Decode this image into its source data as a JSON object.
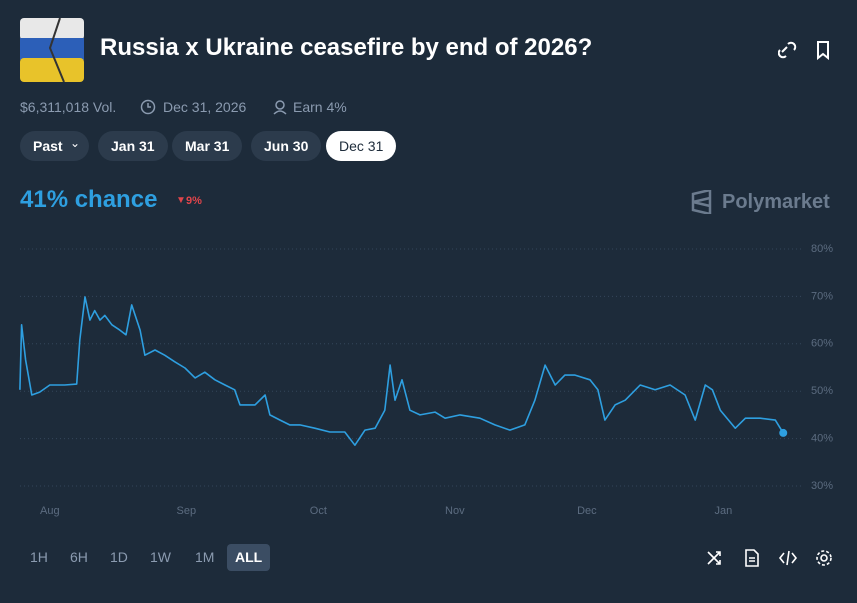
{
  "header": {
    "title": "Russia x Ukraine ceasefire by end of 2026?"
  },
  "stats": {
    "volume": "$6,311,018 Vol.",
    "end_date": "Dec 31, 2026",
    "earn": "Earn 4%"
  },
  "date_tabs": [
    "Past",
    "Jan 31",
    "Mar 31",
    "Jun 30",
    "Dec 31"
  ],
  "chance": {
    "label": "41% chance",
    "change": "9%"
  },
  "brand": "Polymarket",
  "chart_data": {
    "type": "line",
    "x": [
      -6.8,
      -6.4,
      -5.5,
      -4.1,
      -2.3,
      0,
      3.4,
      6.1,
      6.8,
      8,
      9.1,
      10.2,
      11.4,
      12.5,
      14.1,
      15.9,
      17.3,
      18.6,
      20.5,
      21.6,
      23.9,
      26.1,
      28.4,
      30.7,
      33,
      35.2,
      37.5,
      39.8,
      42,
      43.2,
      46.6,
      48.9,
      50,
      52.3,
      54.5,
      56.8,
      60.2,
      63.6,
      67,
      69.3,
      71.6,
      73.9,
      76.1,
      77.3,
      78.4,
      80,
      81.8,
      84.1,
      87.5,
      89.8,
      93.2,
      97.7,
      101.1,
      104.5,
      107.9,
      110.2,
      112.5,
      114.8,
      117,
      119.3,
      122.7,
      124.5,
      126.1,
      128.4,
      130.7,
      134.1,
      137.5,
      140.9,
      144.3,
      146.6,
      148.9,
      150.5,
      152.3,
      155.7,
      158,
      161.4,
      164.8,
      166.6
    ],
    "series": [
      {
        "color": "#2e9fe0",
        "values": [
          50.3,
          64,
          56.6,
          49.2,
          49.8,
          51.3,
          51.3,
          51.5,
          60.8,
          69.9,
          65,
          67,
          65,
          66,
          64,
          62.9,
          61.9,
          68.2,
          62.9,
          57.6,
          58.7,
          57.6,
          56.2,
          54.9,
          52.8,
          54,
          52.4,
          51.3,
          50.3,
          47.1,
          47.1,
          49.2,
          45,
          43.9,
          42.9,
          42.9,
          42.2,
          41.4,
          41.4,
          38.6,
          41.8,
          42.2,
          46,
          55.5,
          48.1,
          52.4,
          46,
          45,
          45.6,
          44.3,
          45,
          44.3,
          42.9,
          41.8,
          42.9,
          48.1,
          55.5,
          51.3,
          53.4,
          53.4,
          52.4,
          50.3,
          43.9,
          47.1,
          48.1,
          51.3,
          50.3,
          51.3,
          49.2,
          43.9,
          51.3,
          50.3,
          46,
          42.2,
          44.3,
          44.3,
          43.9,
          41.2
        ]
      }
    ],
    "xlim": [
      -7,
      167
    ],
    "xticks": [
      {
        "value": 0,
        "label": "Aug"
      },
      {
        "value": 31,
        "label": "Sep"
      },
      {
        "value": 61,
        "label": "Oct"
      },
      {
        "value": 92,
        "label": "Nov"
      },
      {
        "value": 122,
        "label": "Dec"
      },
      {
        "value": 153,
        "label": "Jan"
      }
    ],
    "ylim": [
      30,
      80
    ],
    "yticks": [
      {
        "value": 30,
        "label": "30%"
      },
      {
        "value": 40,
        "label": "40%"
      },
      {
        "value": 50,
        "label": "50%"
      },
      {
        "value": 60,
        "label": "60%"
      },
      {
        "value": 70,
        "label": "70%"
      },
      {
        "value": 80,
        "label": "80%"
      }
    ],
    "grid": true
  },
  "range_tabs": [
    "1H",
    "6H",
    "1D",
    "1W",
    "1M",
    "ALL"
  ]
}
